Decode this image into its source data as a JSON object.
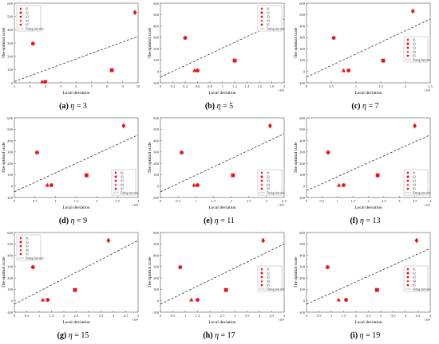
{
  "style": {
    "marker_color": "#e8141b",
    "axis_color": "#555555",
    "fit_line_color": "#333333"
  },
  "legend_labels": [
    "S1",
    "S2",
    "S3",
    "S4",
    "S5",
    "Fitting function"
  ],
  "ylabel": "The optimal scale",
  "xlabel": "Local deviation",
  "chart_data": [
    {
      "type": "scatter",
      "caption_letter": "(a)",
      "eta": "3",
      "xlabel": "Local deviation",
      "ylabel": "The optimal scale",
      "xlim": [
        2,
        10
      ],
      "ylim": [
        0,
        600
      ],
      "xticks": [
        2,
        3,
        4,
        5,
        6,
        7,
        8,
        9,
        10
      ],
      "xtick_labels": [
        "2",
        "3",
        "4",
        "5",
        "6",
        "7",
        "8",
        "9",
        "10"
      ],
      "x_multiplier": "",
      "yticks": [
        0,
        100,
        200,
        300,
        400,
        500,
        600
      ],
      "legend_position": "top-left",
      "series": [
        {
          "name": "S1",
          "marker": "diamond",
          "x": 9.8,
          "y": 530
        },
        {
          "name": "S2",
          "marker": "square",
          "x": 8.3,
          "y": 95
        },
        {
          "name": "S3",
          "marker": "circle",
          "x": 3.2,
          "y": 295
        },
        {
          "name": "S4",
          "marker": "triangle",
          "x": 3.8,
          "y": 8
        },
        {
          "name": "S5",
          "marker": "circle",
          "x": 4.0,
          "y": 8
        }
      ],
      "fit": {
        "x": [
          2,
          10
        ],
        "y": [
          10,
          350
        ]
      }
    },
    {
      "type": "scatter",
      "caption_letter": "(b)",
      "eta": "5",
      "xlabel": "Local deviation",
      "ylabel": "The optimal scale",
      "xlim": [
        0,
        2
      ],
      "ylim": [
        -100,
        600
      ],
      "xticks": [
        0,
        0.2,
        0.4,
        0.6,
        0.8,
        1,
        1.2,
        1.4,
        1.6,
        1.8,
        2
      ],
      "xtick_labels": [
        "0",
        "0.2",
        "0.4",
        "0.6",
        "0.8",
        "1",
        "1.2",
        "1.4",
        "1.6",
        "1.8",
        "2"
      ],
      "x_multiplier": "×10⁴",
      "yticks": [
        -100,
        0,
        100,
        200,
        300,
        400,
        500,
        600
      ],
      "legend_position": "top-right",
      "series": [
        {
          "name": "S1",
          "marker": "diamond",
          "x": 1.6,
          "y": 530
        },
        {
          "name": "S2",
          "marker": "square",
          "x": 1.2,
          "y": 95
        },
        {
          "name": "S3",
          "marker": "circle",
          "x": 0.4,
          "y": 295
        },
        {
          "name": "S4",
          "marker": "triangle",
          "x": 0.55,
          "y": 8
        },
        {
          "name": "S5",
          "marker": "circle",
          "x": 0.6,
          "y": 8
        }
      ],
      "fit": {
        "x": [
          0,
          2
        ],
        "y": [
          -50,
          460
        ]
      }
    },
    {
      "type": "scatter",
      "caption_letter": "(c)",
      "eta": "7",
      "xlabel": "Local deviation",
      "ylabel": "The optimal scale",
      "xlim": [
        0,
        2.5
      ],
      "ylim": [
        -100,
        600
      ],
      "xticks": [
        0,
        0.5,
        1,
        1.5,
        2,
        2.5
      ],
      "xtick_labels": [
        "0",
        "0.5",
        "1",
        "1.5",
        "2",
        "2.5"
      ],
      "x_multiplier": "×10⁴",
      "yticks": [
        -100,
        0,
        100,
        200,
        300,
        400,
        500,
        600
      ],
      "legend_position": "middle-right",
      "series": [
        {
          "name": "S1",
          "marker": "diamond",
          "x": 2.15,
          "y": 530
        },
        {
          "name": "S2",
          "marker": "square",
          "x": 1.55,
          "y": 95
        },
        {
          "name": "S3",
          "marker": "circle",
          "x": 0.55,
          "y": 295
        },
        {
          "name": "S4",
          "marker": "triangle",
          "x": 0.75,
          "y": 8
        },
        {
          "name": "S5",
          "marker": "circle",
          "x": 0.85,
          "y": 8
        }
      ],
      "fit": {
        "x": [
          0,
          2.5
        ],
        "y": [
          -50,
          460
        ]
      }
    },
    {
      "type": "scatter",
      "caption_letter": "(d)",
      "eta": "9",
      "xlabel": "Local deviation",
      "ylabel": "The optimal scale",
      "xlim": [
        0,
        3
      ],
      "ylim": [
        -100,
        600
      ],
      "xticks": [
        0,
        0.5,
        1,
        1.5,
        2,
        2.5,
        3
      ],
      "xtick_labels": [
        "0",
        "0.5",
        "1",
        "1.5",
        "2",
        "2.5",
        "3"
      ],
      "x_multiplier": "×10⁴",
      "yticks": [
        -100,
        0,
        100,
        200,
        300,
        400,
        500,
        600
      ],
      "legend_position": "bottom-right",
      "series": [
        {
          "name": "S1",
          "marker": "diamond",
          "x": 2.65,
          "y": 530
        },
        {
          "name": "S2",
          "marker": "square",
          "x": 1.75,
          "y": 95
        },
        {
          "name": "S3",
          "marker": "circle",
          "x": 0.55,
          "y": 295
        },
        {
          "name": "S4",
          "marker": "triangle",
          "x": 0.8,
          "y": 8
        },
        {
          "name": "S5",
          "marker": "circle",
          "x": 0.9,
          "y": 8
        }
      ],
      "fit": {
        "x": [
          0,
          3
        ],
        "y": [
          -50,
          450
        ]
      }
    },
    {
      "type": "scatter",
      "caption_letter": "(e)",
      "eta": "11",
      "xlabel": "Local deviation",
      "ylabel": "The optimal scale",
      "xlim": [
        0,
        3.5
      ],
      "ylim": [
        -100,
        600
      ],
      "xticks": [
        0,
        0.5,
        1,
        1.5,
        2,
        2.5,
        3,
        3.5
      ],
      "xtick_labels": [
        "0",
        "0.5",
        "1",
        "1.5",
        "2",
        "2.5",
        "3",
        "3.5"
      ],
      "x_multiplier": "×10⁴",
      "yticks": [
        -100,
        0,
        100,
        200,
        300,
        400,
        500,
        600
      ],
      "legend_position": "bottom-right",
      "series": [
        {
          "name": "S1",
          "marker": "diamond",
          "x": 3.1,
          "y": 530
        },
        {
          "name": "S2",
          "marker": "square",
          "x": 2.05,
          "y": 95
        },
        {
          "name": "S3",
          "marker": "circle",
          "x": 0.6,
          "y": 295
        },
        {
          "name": "S4",
          "marker": "triangle",
          "x": 0.95,
          "y": 8
        },
        {
          "name": "S5",
          "marker": "circle",
          "x": 1.05,
          "y": 8
        }
      ],
      "fit": {
        "x": [
          0,
          3.5
        ],
        "y": [
          -50,
          460
        ]
      }
    },
    {
      "type": "scatter",
      "caption_letter": "(f)",
      "eta": "13",
      "xlabel": "Local deviation",
      "ylabel": "The optimal scale",
      "xlim": [
        0,
        4
      ],
      "ylim": [
        -100,
        600
      ],
      "xticks": [
        0,
        0.5,
        1,
        1.5,
        2,
        2.5,
        3,
        3.5,
        4
      ],
      "xtick_labels": [
        "0",
        "0.5",
        "1",
        "1.5",
        "2",
        "2.5",
        "3",
        "3.5",
        "4"
      ],
      "x_multiplier": "×10⁴",
      "yticks": [
        -100,
        0,
        100,
        200,
        300,
        400,
        500,
        600
      ],
      "legend_position": "bottom-right",
      "series": [
        {
          "name": "S1",
          "marker": "diamond",
          "x": 3.5,
          "y": 530
        },
        {
          "name": "S2",
          "marker": "square",
          "x": 2.3,
          "y": 95
        },
        {
          "name": "S3",
          "marker": "circle",
          "x": 0.7,
          "y": 295
        },
        {
          "name": "S4",
          "marker": "triangle",
          "x": 1.05,
          "y": 8
        },
        {
          "name": "S5",
          "marker": "circle",
          "x": 1.2,
          "y": 8
        }
      ],
      "fit": {
        "x": [
          0,
          4
        ],
        "y": [
          -40,
          450
        ]
      }
    },
    {
      "type": "scatter",
      "caption_letter": "(g)",
      "eta": "15",
      "xlabel": "Local deviation",
      "ylabel": "The optimal scale",
      "xlim": [
        0,
        5
      ],
      "ylim": [
        -100,
        600
      ],
      "xticks": [
        0,
        0.5,
        1,
        1.5,
        2,
        2.5,
        3,
        3.5,
        4,
        4.5,
        5
      ],
      "xtick_labels": [
        "0",
        "0.5",
        "1",
        "1.5",
        "2",
        "2.5",
        "3",
        "3.5",
        "4",
        "4.5",
        "5"
      ],
      "x_multiplier": "×10⁴",
      "yticks": [
        -100,
        0,
        100,
        200,
        300,
        400,
        500,
        600
      ],
      "legend_position": "top-left",
      "series": [
        {
          "name": "S1",
          "marker": "diamond",
          "x": 3.8,
          "y": 530
        },
        {
          "name": "S2",
          "marker": "square",
          "x": 2.45,
          "y": 95
        },
        {
          "name": "S3",
          "marker": "circle",
          "x": 0.75,
          "y": 295
        },
        {
          "name": "S4",
          "marker": "triangle",
          "x": 1.15,
          "y": 8
        },
        {
          "name": "S5",
          "marker": "circle",
          "x": 1.35,
          "y": 8
        }
      ],
      "fit": {
        "x": [
          0,
          5
        ],
        "y": [
          -30,
          530
        ]
      }
    },
    {
      "type": "scatter",
      "caption_letter": "(h)",
      "eta": "17",
      "xlabel": "Local deviation",
      "ylabel": "The optimal scale",
      "xlim": [
        0,
        5
      ],
      "ylim": [
        -100,
        600
      ],
      "xticks": [
        0,
        0.5,
        1,
        1.5,
        2,
        2.5,
        3,
        3.5,
        4,
        4.5,
        5
      ],
      "xtick_labels": [
        "0",
        "0.5",
        "1",
        "1.5",
        "2",
        "2.5",
        "3",
        "3.5",
        "4",
        "4.5",
        "5"
      ],
      "x_multiplier": "×10⁴",
      "yticks": [
        -100,
        0,
        100,
        200,
        300,
        400,
        500,
        600
      ],
      "legend_position": "middle-right",
      "series": [
        {
          "name": "S1",
          "marker": "diamond",
          "x": 4.15,
          "y": 530
        },
        {
          "name": "S2",
          "marker": "square",
          "x": 2.65,
          "y": 95
        },
        {
          "name": "S3",
          "marker": "circle",
          "x": 0.8,
          "y": 295
        },
        {
          "name": "S4",
          "marker": "triangle",
          "x": 1.25,
          "y": 8
        },
        {
          "name": "S5",
          "marker": "circle",
          "x": 1.5,
          "y": 8
        }
      ],
      "fit": {
        "x": [
          0,
          5
        ],
        "y": [
          -30,
          500
        ]
      }
    },
    {
      "type": "scatter",
      "caption_letter": "(i)",
      "eta": "19",
      "xlabel": "Local deviation",
      "ylabel": "The optimal scale",
      "xlim": [
        0,
        5
      ],
      "ylim": [
        -100,
        600
      ],
      "xticks": [
        0,
        0.5,
        1,
        1.5,
        2,
        2.5,
        3,
        3.5,
        4,
        4.5,
        5
      ],
      "xtick_labels": [
        "0",
        "0.5",
        "1",
        "1.5",
        "2",
        "2.5",
        "3",
        "3.5",
        "4",
        "4.5",
        "5"
      ],
      "x_multiplier": "×10⁴",
      "yticks": [
        -100,
        0,
        100,
        200,
        300,
        400,
        500,
        600
      ],
      "legend_position": "middle-right",
      "series": [
        {
          "name": "S1",
          "marker": "diamond",
          "x": 4.45,
          "y": 530
        },
        {
          "name": "S2",
          "marker": "square",
          "x": 2.85,
          "y": 95
        },
        {
          "name": "S3",
          "marker": "circle",
          "x": 0.85,
          "y": 295
        },
        {
          "name": "S4",
          "marker": "triangle",
          "x": 1.3,
          "y": 8
        },
        {
          "name": "S5",
          "marker": "circle",
          "x": 1.6,
          "y": 8
        }
      ],
      "fit": {
        "x": [
          0,
          5
        ],
        "y": [
          -30,
          460
        ]
      }
    }
  ]
}
